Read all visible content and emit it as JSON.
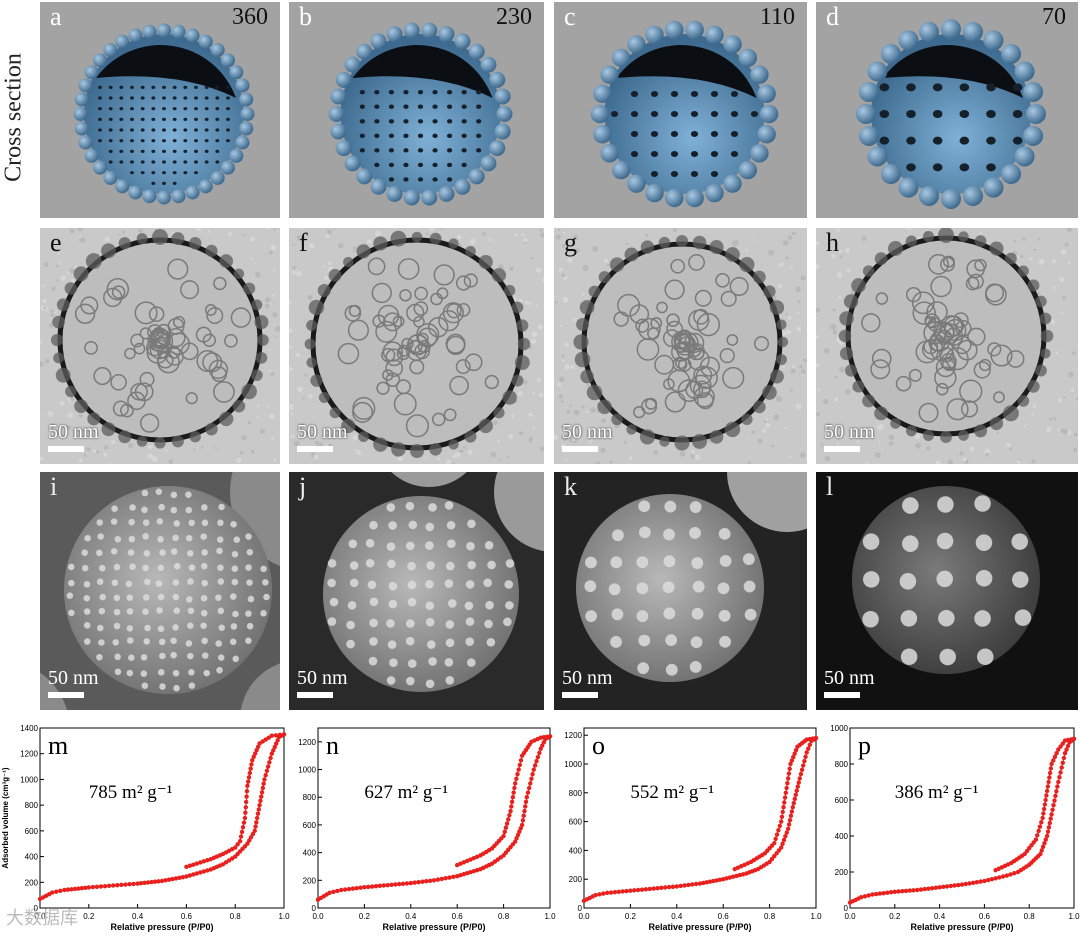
{
  "side_label": "Cross section",
  "row_models": [
    {
      "letter": "a",
      "number": "360"
    },
    {
      "letter": "b",
      "number": "230"
    },
    {
      "letter": "c",
      "number": "110"
    },
    {
      "letter": "d",
      "number": "70"
    }
  ],
  "row_tem": [
    {
      "letter": "e",
      "scale": "50 nm"
    },
    {
      "letter": "f",
      "scale": "50 nm"
    },
    {
      "letter": "g",
      "scale": "50 nm"
    },
    {
      "letter": "h",
      "scale": "50 nm"
    }
  ],
  "row_sem": [
    {
      "letter": "i",
      "scale": "50 nm"
    },
    {
      "letter": "j",
      "scale": "50 nm"
    },
    {
      "letter": "k",
      "scale": "50 nm"
    },
    {
      "letter": "l",
      "scale": "50 nm"
    }
  ],
  "watermark": "大数据库",
  "colors": {
    "series": "#e8201e",
    "sphere": "#5a8bb0",
    "bead": "#5d86ad"
  },
  "chart_data": [
    {
      "type": "scatter",
      "panel": "m",
      "annotation": "785 m² g⁻¹",
      "xlabel": "Relative pressure (P/P0)",
      "ylabel": "Adsorbed volume (cm³g⁻¹)",
      "xlim": [
        0,
        1
      ],
      "ylim": [
        0,
        1400
      ],
      "xticks": [
        "0.0",
        "0.2",
        "0.4",
        "0.6",
        "0.8",
        "1.0"
      ],
      "yticks": [
        "0",
        "200",
        "400",
        "600",
        "800",
        "1000",
        "1200",
        "1400"
      ],
      "adsorption": [
        [
          0,
          70
        ],
        [
          0.05,
          120
        ],
        [
          0.1,
          140
        ],
        [
          0.2,
          160
        ],
        [
          0.3,
          175
        ],
        [
          0.4,
          190
        ],
        [
          0.5,
          210
        ],
        [
          0.6,
          245
        ],
        [
          0.7,
          300
        ],
        [
          0.75,
          340
        ],
        [
          0.8,
          400
        ],
        [
          0.85,
          500
        ],
        [
          0.88,
          600
        ],
        [
          0.9,
          800
        ],
        [
          0.92,
          1000
        ],
        [
          0.95,
          1200
        ],
        [
          0.98,
          1330
        ],
        [
          1.0,
          1350
        ]
      ],
      "desorption": [
        [
          1.0,
          1350
        ],
        [
          0.95,
          1340
        ],
        [
          0.9,
          1280
        ],
        [
          0.87,
          1150
        ],
        [
          0.85,
          950
        ],
        [
          0.84,
          700
        ],
        [
          0.82,
          520
        ],
        [
          0.8,
          470
        ],
        [
          0.75,
          420
        ],
        [
          0.7,
          380
        ],
        [
          0.6,
          320
        ]
      ]
    },
    {
      "type": "scatter",
      "panel": "n",
      "annotation": "627 m² g⁻¹",
      "xlabel": "Relative pressure (P/P0)",
      "ylabel": "",
      "xlim": [
        0,
        1
      ],
      "ylim": [
        0,
        1300
      ],
      "xticks": [
        "0.0",
        "0.2",
        "0.4",
        "0.6",
        "0.8",
        "1.0"
      ],
      "yticks": [
        "0",
        "200",
        "400",
        "600",
        "800",
        "1000",
        "1200"
      ],
      "adsorption": [
        [
          0,
          60
        ],
        [
          0.05,
          110
        ],
        [
          0.1,
          130
        ],
        [
          0.2,
          150
        ],
        [
          0.3,
          165
        ],
        [
          0.4,
          180
        ],
        [
          0.5,
          200
        ],
        [
          0.6,
          230
        ],
        [
          0.7,
          280
        ],
        [
          0.75,
          320
        ],
        [
          0.8,
          380
        ],
        [
          0.85,
          480
        ],
        [
          0.88,
          600
        ],
        [
          0.9,
          800
        ],
        [
          0.93,
          1000
        ],
        [
          0.96,
          1150
        ],
        [
          0.98,
          1220
        ],
        [
          1.0,
          1240
        ]
      ],
      "desorption": [
        [
          1.0,
          1240
        ],
        [
          0.96,
          1230
        ],
        [
          0.92,
          1200
        ],
        [
          0.88,
          1100
        ],
        [
          0.85,
          900
        ],
        [
          0.83,
          700
        ],
        [
          0.8,
          520
        ],
        [
          0.75,
          430
        ],
        [
          0.7,
          380
        ],
        [
          0.6,
          310
        ]
      ]
    },
    {
      "type": "scatter",
      "panel": "o",
      "annotation": "552 m² g⁻¹",
      "xlabel": "Relative pressure (P/P0)",
      "ylabel": "",
      "xlim": [
        0,
        1
      ],
      "ylim": [
        0,
        1250
      ],
      "xticks": [
        "0.0",
        "0.2",
        "0.4",
        "0.6",
        "0.8",
        "1.0"
      ],
      "yticks": [
        "0",
        "200",
        "400",
        "600",
        "800",
        "1000",
        "1200"
      ],
      "adsorption": [
        [
          0,
          50
        ],
        [
          0.05,
          90
        ],
        [
          0.1,
          105
        ],
        [
          0.2,
          120
        ],
        [
          0.3,
          135
        ],
        [
          0.4,
          150
        ],
        [
          0.5,
          170
        ],
        [
          0.6,
          200
        ],
        [
          0.7,
          240
        ],
        [
          0.75,
          270
        ],
        [
          0.8,
          320
        ],
        [
          0.85,
          420
        ],
        [
          0.88,
          550
        ],
        [
          0.9,
          700
        ],
        [
          0.93,
          900
        ],
        [
          0.96,
          1080
        ],
        [
          0.98,
          1160
        ],
        [
          1.0,
          1180
        ]
      ],
      "desorption": [
        [
          1.0,
          1180
        ],
        [
          0.96,
          1170
        ],
        [
          0.92,
          1120
        ],
        [
          0.89,
          1000
        ],
        [
          0.87,
          800
        ],
        [
          0.85,
          600
        ],
        [
          0.82,
          450
        ],
        [
          0.78,
          380
        ],
        [
          0.72,
          320
        ],
        [
          0.65,
          270
        ]
      ]
    },
    {
      "type": "scatter",
      "panel": "p",
      "annotation": "386 m² g⁻¹",
      "xlabel": "Relative pressure (P/P0)",
      "ylabel": "",
      "xlim": [
        0,
        1
      ],
      "ylim": [
        0,
        1000
      ],
      "xticks": [
        "0.0",
        "0.2",
        "0.4",
        "0.6",
        "0.8",
        "1.0"
      ],
      "yticks": [
        "0",
        "200",
        "400",
        "600",
        "800",
        "1000"
      ],
      "adsorption": [
        [
          0,
          30
        ],
        [
          0.05,
          60
        ],
        [
          0.1,
          75
        ],
        [
          0.2,
          90
        ],
        [
          0.3,
          100
        ],
        [
          0.4,
          115
        ],
        [
          0.5,
          130
        ],
        [
          0.6,
          150
        ],
        [
          0.7,
          180
        ],
        [
          0.75,
          200
        ],
        [
          0.8,
          240
        ],
        [
          0.85,
          300
        ],
        [
          0.88,
          400
        ],
        [
          0.9,
          520
        ],
        [
          0.93,
          700
        ],
        [
          0.96,
          860
        ],
        [
          0.98,
          920
        ],
        [
          1.0,
          940
        ]
      ],
      "desorption": [
        [
          1.0,
          940
        ],
        [
          0.96,
          930
        ],
        [
          0.93,
          880
        ],
        [
          0.9,
          800
        ],
        [
          0.88,
          650
        ],
        [
          0.86,
          500
        ],
        [
          0.83,
          380
        ],
        [
          0.78,
          300
        ],
        [
          0.72,
          250
        ],
        [
          0.65,
          210
        ]
      ]
    }
  ]
}
